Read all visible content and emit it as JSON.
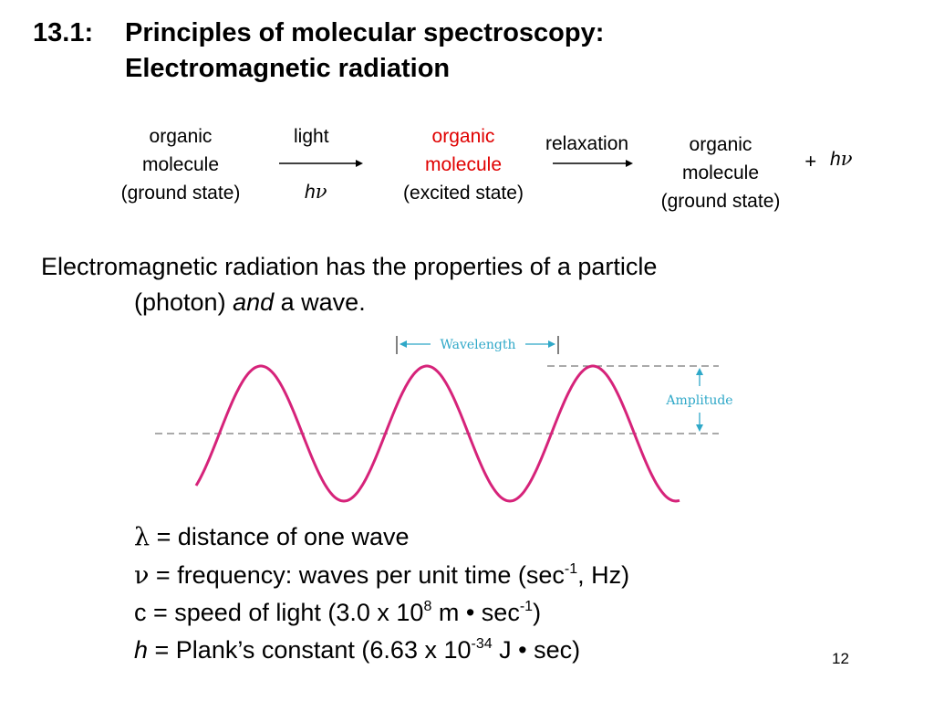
{
  "title": {
    "number": "13.1:",
    "line1": "Principles of molecular spectroscopy:",
    "line2": "Electromagnetic radiation"
  },
  "scheme": {
    "ground_state_1": [
      "organic",
      "molecule",
      "(ground state)"
    ],
    "arrow1_top": "light",
    "arrow1_bottom_h": "h",
    "arrow1_bottom_nu": "ν",
    "excited_state": [
      "organic",
      "molecule"
    ],
    "excited_state_paren": "(excited state)",
    "arrow2_top": "relaxation",
    "ground_state_2": [
      "organic",
      "molecule",
      "(ground state)"
    ],
    "plus": "+",
    "product_h": "h",
    "product_nu": "ν",
    "excited_color": "#e00000"
  },
  "statement": {
    "line1": "Electromagnetic radiation has the properties of a particle",
    "line2_pre": "(photon) ",
    "line2_em": "and",
    "line2_post": " a wave."
  },
  "wave_figure": {
    "wavelength_label": "Wavelength",
    "amplitude_label": "Amplitude",
    "wave_color": "#d6237a",
    "annotation_color": "#2fa8c8",
    "cycles": 3
  },
  "definitions": {
    "lambda_sym": "λ",
    "lambda_text": " = distance of one wave",
    "nu_sym": "ν",
    "nu_text": " = frequency: waves per unit time (sec",
    "nu_sup": "-1",
    "nu_tail": ", Hz)",
    "c_text": "c = speed of light (3.0 x 10",
    "c_sup1": "8",
    "c_mid": " m • sec",
    "c_sup2": "-1",
    "c_tail": ")",
    "h_sym": "h",
    "h_text": " = Plank’s constant (6.63 x 10",
    "h_sup": "-34",
    "h_tail": " J • sec)"
  },
  "slide_number": "12"
}
